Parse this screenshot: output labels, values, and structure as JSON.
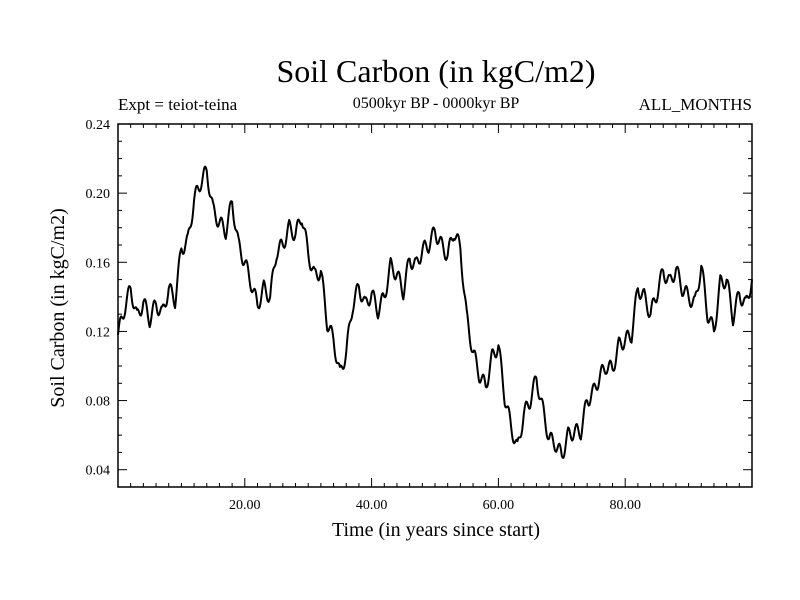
{
  "chart_data": {
    "type": "line",
    "title": "Soil Carbon (in kgC/m2)",
    "left_caption": "Expt = teiot-teina",
    "center_caption": "0500kyr BP - 0000kyr BP",
    "right_caption": "ALL_MONTHS",
    "xlabel": "Time (in years since start)",
    "ylabel": "Soil Carbon (in kgC/m2)",
    "xlim": [
      0,
      100
    ],
    "ylim": [
      0.03,
      0.24
    ],
    "xticks": [
      20,
      40,
      60,
      80
    ],
    "xtick_labels": [
      "20.00",
      "40.00",
      "60.00",
      "80.00"
    ],
    "yticks": [
      0.04,
      0.08,
      0.12,
      0.16,
      0.2,
      0.24
    ],
    "ytick_labels": [
      "0.04",
      "0.08",
      "0.12",
      "0.16",
      "0.20",
      "0.24"
    ],
    "series": [
      {
        "name": "Soil Carbon",
        "color": "#000000",
        "x": [
          0,
          1,
          2,
          3,
          4,
          5,
          6,
          7,
          8,
          9,
          10,
          11,
          12,
          13,
          14,
          15,
          16,
          17,
          18,
          19,
          20,
          21,
          22,
          23,
          24,
          25,
          26,
          27,
          28,
          29,
          30,
          31,
          32,
          33,
          34,
          35,
          36,
          37,
          38,
          39,
          40,
          41,
          42,
          43,
          44,
          45,
          46,
          47,
          48,
          49,
          50,
          51,
          52,
          53,
          54,
          55,
          56,
          57,
          58,
          59,
          60,
          61,
          62,
          63,
          64,
          65,
          66,
          67,
          68,
          69,
          70,
          71,
          72,
          73,
          74,
          75,
          76,
          77,
          78,
          79,
          80,
          81,
          82,
          83,
          84,
          85,
          86,
          87,
          88,
          89,
          90,
          91,
          92,
          93,
          94,
          95,
          96,
          97,
          98,
          99,
          100
        ],
        "values": [
          0.118,
          0.133,
          0.145,
          0.128,
          0.137,
          0.127,
          0.136,
          0.13,
          0.145,
          0.138,
          0.168,
          0.172,
          0.196,
          0.206,
          0.213,
          0.19,
          0.183,
          0.178,
          0.195,
          0.17,
          0.16,
          0.148,
          0.135,
          0.145,
          0.14,
          0.166,
          0.17,
          0.18,
          0.176,
          0.187,
          0.165,
          0.152,
          0.155,
          0.125,
          0.115,
          0.095,
          0.108,
          0.135,
          0.146,
          0.135,
          0.142,
          0.132,
          0.14,
          0.158,
          0.153,
          0.143,
          0.162,
          0.158,
          0.167,
          0.17,
          0.178,
          0.17,
          0.164,
          0.178,
          0.168,
          0.128,
          0.108,
          0.095,
          0.088,
          0.105,
          0.112,
          0.082,
          0.065,
          0.052,
          0.072,
          0.08,
          0.093,
          0.075,
          0.058,
          0.055,
          0.048,
          0.06,
          0.062,
          0.062,
          0.08,
          0.085,
          0.094,
          0.1,
          0.098,
          0.112,
          0.115,
          0.118,
          0.145,
          0.14,
          0.13,
          0.142,
          0.155,
          0.148,
          0.156,
          0.145,
          0.14,
          0.136,
          0.158,
          0.13,
          0.12,
          0.148,
          0.15,
          0.128,
          0.142,
          0.135,
          0.15
        ]
      }
    ]
  }
}
